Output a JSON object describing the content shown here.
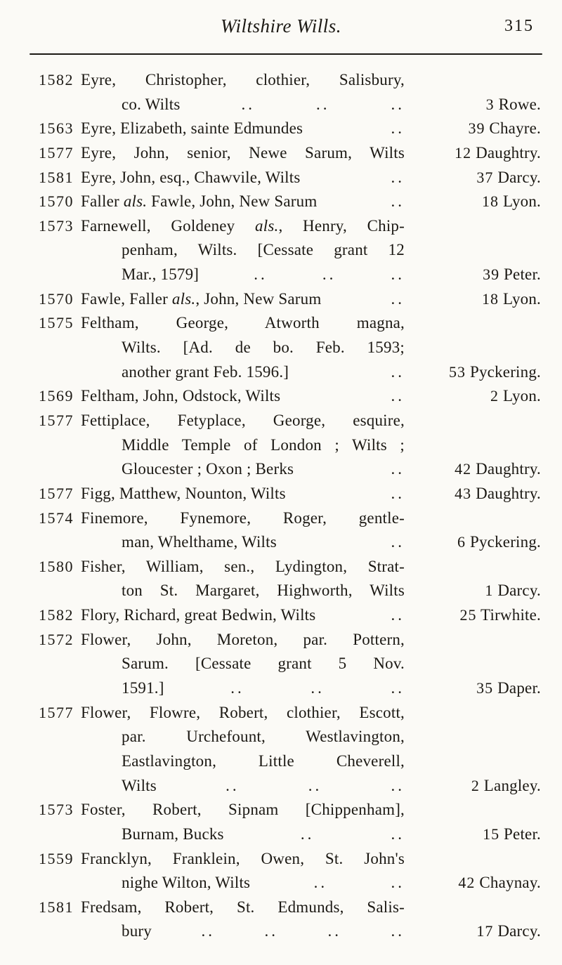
{
  "page": {
    "title": "Wiltshire Wills.",
    "page_number": "315"
  },
  "colors": {
    "paper": "#fbfaf6",
    "ink": "#1c1914"
  },
  "entries": {
    "dot_glyph": "..",
    "lines": [
      {
        "year": "1582",
        "text": "Eyre, Christopher, clothier, Salisbury,",
        "indent": 0,
        "dots": 0,
        "ref_num": "",
        "ref_name": "",
        "justify": true
      },
      {
        "year": "",
        "text": "co. Wilts",
        "indent": 1,
        "dots": 3,
        "ref_num": "3",
        "ref_name": "Rowe.",
        "justify": false
      },
      {
        "year": "1563",
        "text": "Eyre, Elizabeth, sainte Edmundes",
        "indent": 0,
        "dots": 1,
        "ref_num": "39",
        "ref_name": "Chayre.",
        "justify": false
      },
      {
        "year": "1577",
        "text": "Eyre, John, senior, Newe Sarum, Wilts",
        "indent": 0,
        "dots": 0,
        "ref_num": "12",
        "ref_name": "Daughtry.",
        "justify": true
      },
      {
        "year": "1581",
        "text": "Eyre, John, esq., Chawvile, Wilts",
        "indent": 0,
        "dots": 1,
        "ref_num": "37",
        "ref_name": "Darcy.",
        "justify": false
      },
      {
        "year": "1570",
        "text": "Faller *als.* Fawle, John, New Sarum",
        "indent": 0,
        "dots": 1,
        "ref_num": "18",
        "ref_name": "Lyon.",
        "justify": false
      },
      {
        "year": "1573",
        "text": "Farnewell, Goldeney *als.*, Henry, Chip-",
        "indent": 0,
        "dots": 0,
        "ref_num": "",
        "ref_name": "",
        "justify": true
      },
      {
        "year": "",
        "text": "penham, Wilts. [Cessate grant 12",
        "indent": 1,
        "dots": 0,
        "ref_num": "",
        "ref_name": "",
        "justify": true
      },
      {
        "year": "",
        "text": "Mar., 1579]",
        "indent": 1,
        "dots": 3,
        "ref_num": "39",
        "ref_name": "Peter.",
        "justify": false
      },
      {
        "year": "1570",
        "text": "Fawle, Faller *als.*, John, New Sarum",
        "indent": 0,
        "dots": 1,
        "ref_num": "18",
        "ref_name": "Lyon.",
        "justify": false
      },
      {
        "year": "1575",
        "text": "Feltham, George, Atworth magna,",
        "indent": 0,
        "dots": 0,
        "ref_num": "",
        "ref_name": "",
        "justify": true
      },
      {
        "year": "",
        "text": "Wilts. [Ad. de bo. Feb. 1593;",
        "indent": 1,
        "dots": 0,
        "ref_num": "",
        "ref_name": "",
        "justify": true
      },
      {
        "year": "",
        "text": "another grant Feb. 1596.]",
        "indent": 1,
        "dots": 1,
        "ref_num": "53",
        "ref_name": "Pyckering.",
        "justify": false
      },
      {
        "year": "1569",
        "text": "Feltham, John, Odstock, Wilts",
        "indent": 0,
        "dots": 1,
        "ref_num": "2",
        "ref_name": "Lyon.",
        "justify": false
      },
      {
        "year": "1577",
        "text": "Fettiplace, Fetyplace, George, esquire,",
        "indent": 0,
        "dots": 0,
        "ref_num": "",
        "ref_name": "",
        "justify": true
      },
      {
        "year": "",
        "text": "Middle Temple of London ; Wilts ;",
        "indent": 1,
        "dots": 0,
        "ref_num": "",
        "ref_name": "",
        "justify": true
      },
      {
        "year": "",
        "text": "Gloucester ; Oxon ; Berks",
        "indent": 1,
        "dots": 1,
        "ref_num": "42",
        "ref_name": "Daughtry.",
        "justify": false
      },
      {
        "year": "1577",
        "text": "Figg, Matthew, Nounton, Wilts",
        "indent": 0,
        "dots": 1,
        "ref_num": "43",
        "ref_name": "Daughtry.",
        "justify": false
      },
      {
        "year": "1574",
        "text": "Finemore, Fynemore, Roger, gentle-",
        "indent": 0,
        "dots": 0,
        "ref_num": "",
        "ref_name": "",
        "justify": true
      },
      {
        "year": "",
        "text": "man, Whelthame, Wilts",
        "indent": 1,
        "dots": 1,
        "ref_num": "6",
        "ref_name": "Pyckering.",
        "justify": false
      },
      {
        "year": "1580",
        "text": "Fisher, William, sen., Lydington, Strat-",
        "indent": 0,
        "dots": 0,
        "ref_num": "",
        "ref_name": "",
        "justify": true
      },
      {
        "year": "",
        "text": "ton St. Margaret, Highworth, Wilts",
        "indent": 1,
        "dots": 0,
        "ref_num": "1",
        "ref_name": "Darcy.",
        "justify": true
      },
      {
        "year": "1582",
        "text": "Flory, Richard, great Bedwin, Wilts",
        "indent": 0,
        "dots": 1,
        "ref_num": "25",
        "ref_name": "Tirwhite.",
        "justify": false
      },
      {
        "year": "1572",
        "text": "Flower, John, Moreton, par. Pottern,",
        "indent": 0,
        "dots": 0,
        "ref_num": "",
        "ref_name": "",
        "justify": true
      },
      {
        "year": "",
        "text": "Sarum. [Cessate grant 5 Nov.",
        "indent": 1,
        "dots": 0,
        "ref_num": "",
        "ref_name": "",
        "justify": true
      },
      {
        "year": "",
        "text": "1591.]",
        "indent": 1,
        "dots": 3,
        "ref_num": "35",
        "ref_name": "Daper.",
        "justify": false
      },
      {
        "year": "1577",
        "text": "Flower, Flowre, Robert, clothier, Escott,",
        "indent": 0,
        "dots": 0,
        "ref_num": "",
        "ref_name": "",
        "justify": true
      },
      {
        "year": "",
        "text": "par. Urchefount, Westlavington,",
        "indent": 1,
        "dots": 0,
        "ref_num": "",
        "ref_name": "",
        "justify": true
      },
      {
        "year": "",
        "text": "Eastlavington, Little Cheverell,",
        "indent": 1,
        "dots": 0,
        "ref_num": "",
        "ref_name": "",
        "justify": true
      },
      {
        "year": "",
        "text": "Wilts",
        "indent": 1,
        "dots": 3,
        "ref_num": "2",
        "ref_name": "Langley.",
        "justify": false
      },
      {
        "year": "1573",
        "text": "Foster, Robert, Sipnam [Chippenham],",
        "indent": 0,
        "dots": 0,
        "ref_num": "",
        "ref_name": "",
        "justify": true
      },
      {
        "year": "",
        "text": "Burnam, Bucks",
        "indent": 1,
        "dots": 2,
        "ref_num": "15",
        "ref_name": "Peter.",
        "justify": false
      },
      {
        "year": "1559",
        "text": "Francklyn, Franklein, Owen, St. John's",
        "indent": 0,
        "dots": 0,
        "ref_num": "",
        "ref_name": "",
        "justify": true
      },
      {
        "year": "",
        "text": "nighe Wilton, Wilts",
        "indent": 1,
        "dots": 2,
        "ref_num": "42",
        "ref_name": "Chaynay.",
        "justify": false
      },
      {
        "year": "1581",
        "text": "Fredsam, Robert, St. Edmunds, Salis-",
        "indent": 0,
        "dots": 0,
        "ref_num": "",
        "ref_name": "",
        "justify": true
      },
      {
        "year": "",
        "text": "bury",
        "indent": 1,
        "dots": 4,
        "ref_num": "17",
        "ref_name": "Darcy.",
        "justify": false
      }
    ]
  }
}
